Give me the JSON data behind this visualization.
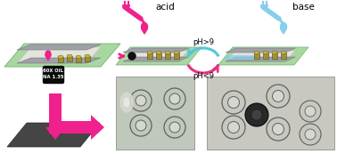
{
  "bg_color": "#ffffff",
  "acid_label": "acid",
  "base_label": "base",
  "ph_gt9": "pH>9",
  "ph_lt9": "pH<9",
  "obj_label": "60X OIL\nNA 1.35",
  "pink": "#F0208C",
  "cyan_drop": "#87CEEB",
  "cyan_arrow": "#50C8D8",
  "pink_arrow": "#E83080",
  "chip_green": "#a8d8a0",
  "chip_gray": "#a0a0a8",
  "chip_white": "#e8e8e0",
  "gold_top": "#c8b844",
  "gold_body": "#a09030",
  "obj_black": "#101010",
  "stage_dark": "#484848",
  "micro_bg_left": "#c0c8bc",
  "micro_bg_right": "#c8c8c0",
  "ring_edge": "#606060",
  "ring_fill": "#d4d8d0",
  "blob_fill": "#d8dcd4",
  "dark_cell": "#282828"
}
